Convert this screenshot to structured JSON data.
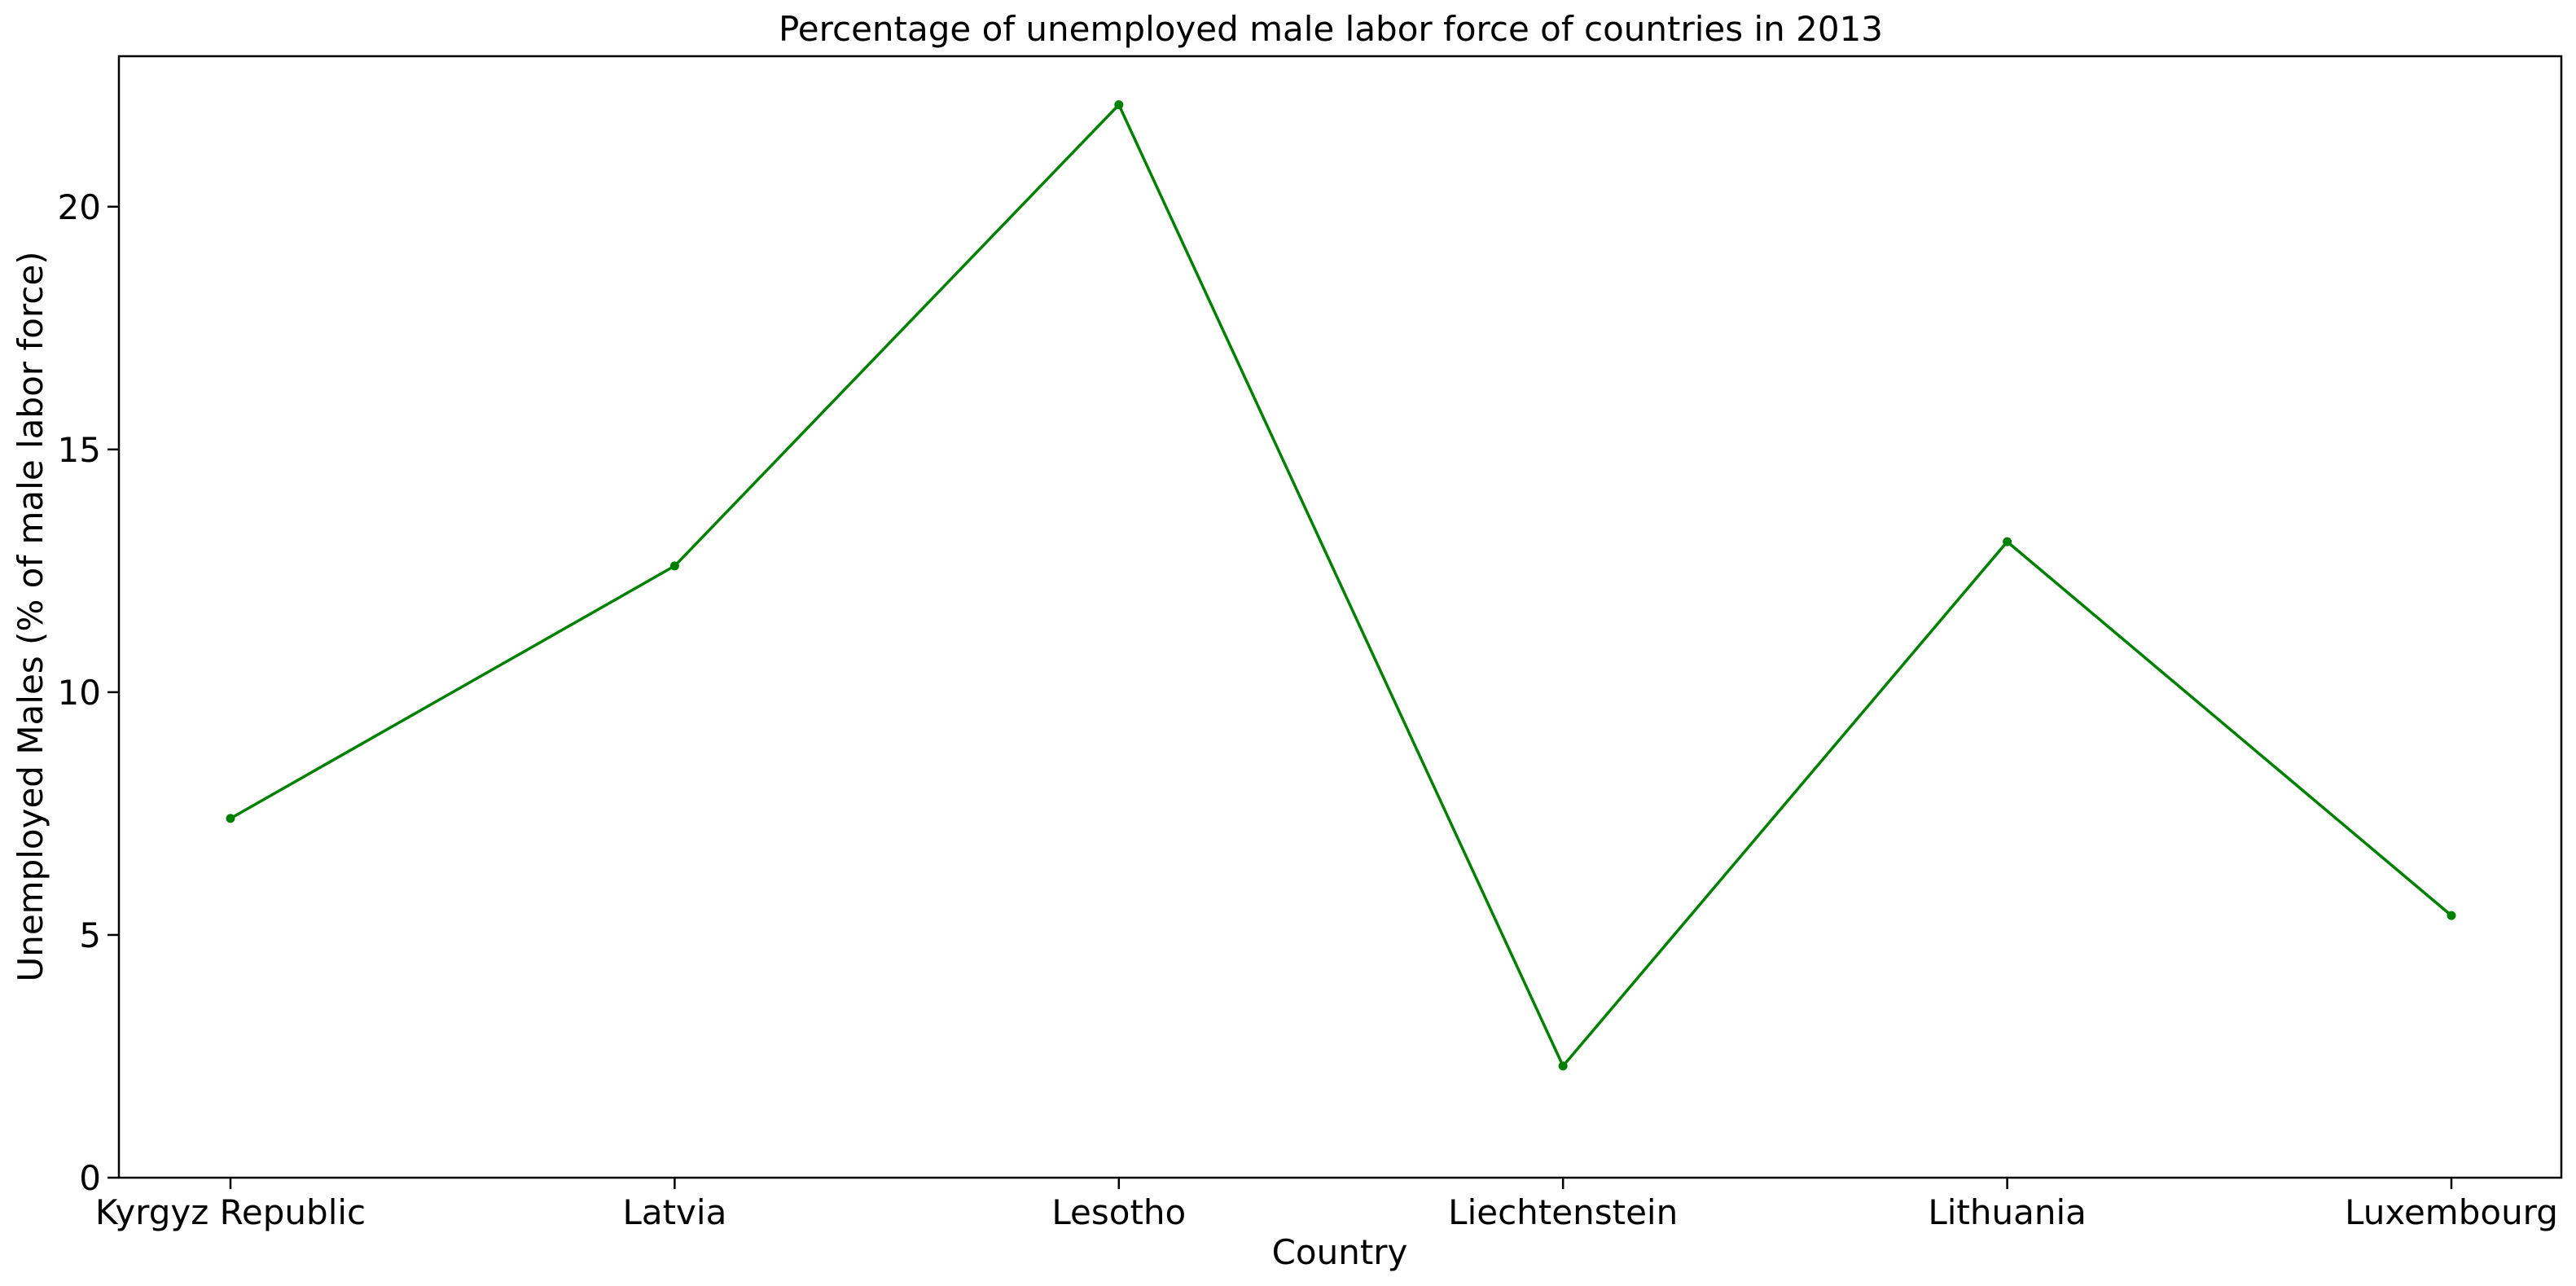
{
  "chart_data": {
    "type": "line",
    "title": "Percentage of unemployed male labor force of countries in 2013",
    "xlabel": "Country",
    "ylabel": "Unemployed Males (% of male labor force)",
    "categories": [
      "Kyrgyz Republic",
      "Latvia",
      "Lesotho",
      "Liechtenstein",
      "Lithuania",
      "Luxembourg"
    ],
    "series": [
      {
        "values": [
          7.4,
          12.6,
          22.1,
          2.3,
          13.1,
          5.4
        ],
        "color": "#008000",
        "marker": "circle"
      }
    ],
    "yticks": [
      0,
      5,
      10,
      15,
      20
    ],
    "ylim": [
      0,
      23.1
    ],
    "grid": false,
    "legend": "none"
  }
}
